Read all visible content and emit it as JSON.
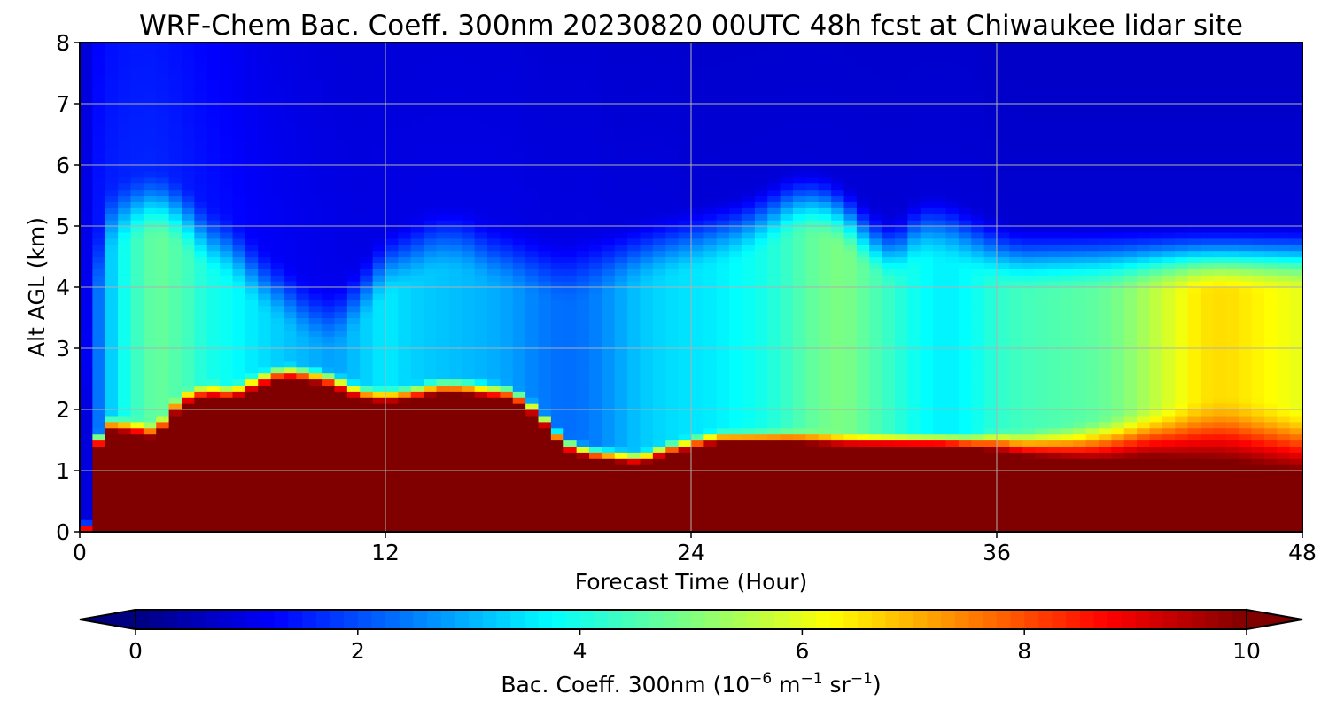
{
  "chart_data": {
    "type": "heatmap",
    "title": "WRF-Chem Bac. Coeff. 300nm  20230820 00UTC 48h fcst at Chiwaukee lidar site",
    "xlabel": "Forecast Time (Hour)",
    "ylabel": "Alt AGL (km)",
    "xlim": [
      0,
      48
    ],
    "ylim": [
      0,
      8
    ],
    "x_ticks": [
      "0",
      "12",
      "24",
      "36",
      "48"
    ],
    "y_ticks": [
      "0",
      "1",
      "2",
      "3",
      "4",
      "5",
      "6",
      "7",
      "8"
    ],
    "grid": true,
    "colormap": "jet",
    "colorbar": {
      "label_main": "Bac. Coeff. 300nm  (10",
      "label_exp1": "−6",
      "label_mid": " m",
      "label_exp2": "−1",
      "label_mid2": " sr",
      "label_exp3": "−1",
      "label_end": ")",
      "ticks": [
        "0",
        "2",
        "4",
        "6",
        "8",
        "10"
      ],
      "range": [
        0,
        10
      ],
      "extend": "both"
    },
    "field": {
      "x_hours": [
        0,
        0.3,
        0.6,
        1,
        2,
        3,
        4,
        5,
        6,
        7,
        8,
        9,
        10,
        11,
        12,
        13,
        14,
        15,
        16,
        17,
        18,
        19,
        20,
        21,
        22,
        23,
        24,
        25,
        26,
        27,
        28,
        29,
        30,
        31,
        32,
        33,
        34,
        35,
        36,
        37,
        38,
        39,
        40,
        41,
        42,
        43,
        44,
        45,
        46,
        47,
        48
      ],
      "saturated_top_km": [
        0,
        0,
        1.2,
        1.6,
        1.55,
        1.45,
        2.0,
        2.15,
        2.1,
        2.3,
        2.45,
        2.4,
        2.3,
        2.1,
        2.05,
        2.1,
        2.2,
        2.2,
        2.15,
        2.1,
        1.8,
        1.3,
        1.15,
        1.1,
        1.05,
        1.2,
        1.3,
        1.4,
        1.4,
        1.4,
        1.4,
        1.38,
        1.35,
        1.35,
        1.35,
        1.35,
        1.35,
        1.3,
        1.25,
        1.15,
        1.1,
        1.05,
        1.0,
        1.0,
        1.0,
        0.95,
        0.9,
        0.85,
        0.8,
        0.75,
        0.7
      ],
      "transition_depth_km": [
        0.1,
        0.2,
        0.3,
        0.35,
        0.35,
        0.35,
        0.35,
        0.35,
        0.35,
        0.35,
        0.35,
        0.35,
        0.35,
        0.35,
        0.35,
        0.35,
        0.35,
        0.35,
        0.35,
        0.35,
        0.3,
        0.3,
        0.3,
        0.3,
        0.3,
        0.3,
        0.3,
        0.3,
        0.3,
        0.3,
        0.3,
        0.3,
        0.3,
        0.3,
        0.3,
        0.3,
        0.3,
        0.35,
        0.45,
        0.55,
        0.65,
        0.75,
        0.9,
        1.0,
        1.1,
        1.2,
        1.3,
        1.4,
        1.4,
        1.4,
        1.4
      ],
      "mid_layer_value": [
        0.5,
        1.0,
        2.0,
        3.0,
        4.2,
        4.8,
        4.5,
        4.0,
        3.8,
        3.5,
        3.2,
        3.0,
        2.8,
        3.2,
        3.6,
        3.3,
        3.2,
        3.1,
        3.0,
        2.8,
        2.5,
        2.3,
        2.4,
        2.8,
        3.2,
        3.4,
        3.5,
        3.6,
        3.8,
        4.0,
        4.4,
        4.8,
        5.0,
        4.6,
        4.2,
        3.8,
        3.6,
        3.8,
        4.2,
        4.4,
        4.5,
        4.6,
        4.7,
        5.0,
        5.5,
        6.0,
        6.5,
        6.6,
        6.4,
        6.2,
        6.0
      ],
      "mid_layer_top_km": [
        0.5,
        2.0,
        3.5,
        4.5,
        4.7,
        4.8,
        4.6,
        4.2,
        4.0,
        3.6,
        3.3,
        3.0,
        2.9,
        3.3,
        3.8,
        4.0,
        4.2,
        4.2,
        4.0,
        3.9,
        3.8,
        3.7,
        3.8,
        3.9,
        4.0,
        4.1,
        4.2,
        4.3,
        4.4,
        4.6,
        4.8,
        4.8,
        4.6,
        4.2,
        4.0,
        4.4,
        4.4,
        4.2,
        4.0,
        3.9,
        3.9,
        3.9,
        3.9,
        3.9,
        3.9,
        3.9,
        3.9,
        3.9,
        3.9,
        3.9,
        3.9
      ],
      "upper_value": [
        0.8,
        1.2,
        1.4,
        1.5,
        1.6,
        1.6,
        1.5,
        1.4,
        1.3,
        1.2,
        1.15,
        1.1,
        1.05,
        1.0,
        1.0,
        1.0,
        1.0,
        1.0,
        1.0,
        1.0,
        0.95,
        0.95,
        0.95,
        0.9,
        0.9,
        0.9,
        0.85,
        0.85,
        0.85,
        0.85,
        0.85,
        0.85,
        0.85,
        0.85,
        0.85,
        0.85,
        0.85,
        0.85,
        0.8,
        0.8,
        0.8,
        0.8,
        0.8,
        0.8,
        0.8,
        0.8,
        0.8,
        0.8,
        0.8,
        0.8,
        0.8
      ]
    }
  }
}
